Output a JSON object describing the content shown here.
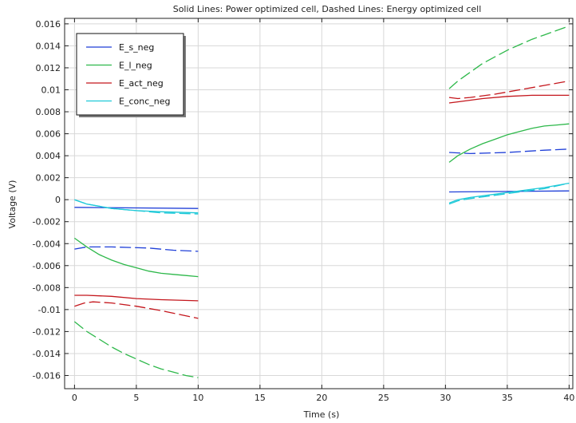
{
  "chart_data": {
    "type": "line",
    "title": "Solid Lines: Power optimized cell, Dashed Lines: Energy optimized cell",
    "xlabel": "Time (s)",
    "ylabel": "Voltage (V)",
    "xlim": [
      -0.8,
      40.3
    ],
    "ylim": [
      -0.0172,
      0.0165
    ],
    "xticks": [
      0,
      5,
      10,
      15,
      20,
      25,
      30,
      35,
      40
    ],
    "yticks": [
      -0.016,
      -0.014,
      -0.012,
      -0.01,
      -0.008,
      -0.006,
      -0.004,
      -0.002,
      0,
      0.002,
      0.004,
      0.006,
      0.008,
      0.01,
      0.012,
      0.014,
      0.016
    ],
    "ytick_labels": [
      "-0.016",
      "-0.014",
      "-0.012",
      "-0.01",
      "-0.008",
      "-0.006",
      "-0.004",
      "-0.002",
      "0",
      "0.002",
      "0.004",
      "0.006",
      "0.008",
      "0.01",
      "0.012",
      "0.014",
      "0.016"
    ],
    "grid": true,
    "legend_position": "top-left",
    "legend": [
      "E_s_neg",
      "E_l_neg",
      "E_act_neg",
      "E_conc_neg"
    ],
    "series": [
      {
        "name": "E_s_neg",
        "color": "#1f3fd8",
        "style": "solid",
        "segments": [
          [
            [
              0,
              -0.0007
            ],
            [
              10,
              -0.0008
            ]
          ],
          [
            [
              30.3,
              0.0007
            ],
            [
              40,
              0.0008
            ]
          ]
        ]
      },
      {
        "name": "E_s_neg",
        "color": "#1f3fd8",
        "style": "dashed",
        "segments": [
          [
            [
              0,
              -0.0045
            ],
            [
              1,
              -0.0043
            ],
            [
              3,
              -0.0043
            ],
            [
              6,
              -0.0044
            ],
            [
              8,
              -0.0046
            ],
            [
              10,
              -0.0047
            ]
          ],
          [
            [
              30.3,
              0.0043
            ],
            [
              32,
              0.0042
            ],
            [
              35,
              0.0043
            ],
            [
              38,
              0.0045
            ],
            [
              40,
              0.0046
            ]
          ]
        ]
      },
      {
        "name": "E_l_neg",
        "color": "#2db84a",
        "style": "solid",
        "segments": [
          [
            [
              0,
              -0.0035
            ],
            [
              1,
              -0.0043
            ],
            [
              2,
              -0.005
            ],
            [
              3,
              -0.0055
            ],
            [
              4,
              -0.0059
            ],
            [
              5,
              -0.0062
            ],
            [
              6,
              -0.0065
            ],
            [
              7,
              -0.0067
            ],
            [
              8,
              -0.0068
            ],
            [
              9,
              -0.0069
            ],
            [
              10,
              -0.007
            ]
          ],
          [
            [
              30.3,
              0.0034
            ],
            [
              31,
              0.004
            ],
            [
              32,
              0.0046
            ],
            [
              33,
              0.0051
            ],
            [
              34,
              0.0055
            ],
            [
              35,
              0.0059
            ],
            [
              36,
              0.0062
            ],
            [
              37,
              0.0065
            ],
            [
              38,
              0.0067
            ],
            [
              39,
              0.0068
            ],
            [
              40,
              0.0069
            ]
          ]
        ]
      },
      {
        "name": "E_l_neg",
        "color": "#2db84a",
        "style": "dashed",
        "segments": [
          [
            [
              0,
              -0.0111
            ],
            [
              1,
              -0.012
            ],
            [
              2,
              -0.0127
            ],
            [
              3,
              -0.0134
            ],
            [
              4,
              -0.014
            ],
            [
              5,
              -0.0145
            ],
            [
              6,
              -0.015
            ],
            [
              7,
              -0.0154
            ],
            [
              8,
              -0.0157
            ],
            [
              9,
              -0.016
            ],
            [
              10,
              -0.0162
            ]
          ],
          [
            [
              30.3,
              0.0101
            ],
            [
              31,
              0.0108
            ],
            [
              32,
              0.0116
            ],
            [
              33,
              0.0124
            ],
            [
              34,
              0.013
            ],
            [
              35,
              0.0136
            ],
            [
              36,
              0.0141
            ],
            [
              37,
              0.0146
            ],
            [
              38,
              0.015
            ],
            [
              39,
              0.0154
            ],
            [
              40,
              0.0158
            ]
          ]
        ]
      },
      {
        "name": "E_act_neg",
        "color": "#c4161c",
        "style": "solid",
        "segments": [
          [
            [
              0,
              -0.0087
            ],
            [
              1,
              -0.0087
            ],
            [
              3,
              -0.0088
            ],
            [
              5,
              -0.009
            ],
            [
              7,
              -0.0091
            ],
            [
              10,
              -0.0092
            ]
          ],
          [
            [
              30.3,
              0.0088
            ],
            [
              31,
              0.0089
            ],
            [
              33,
              0.0092
            ],
            [
              35,
              0.0094
            ],
            [
              37,
              0.0095
            ],
            [
              40,
              0.0095
            ]
          ]
        ]
      },
      {
        "name": "E_act_neg",
        "color": "#c4161c",
        "style": "dashed",
        "segments": [
          [
            [
              0,
              -0.0097
            ],
            [
              0.8,
              -0.0094
            ],
            [
              1.5,
              -0.0093
            ],
            [
              3,
              -0.0094
            ],
            [
              5,
              -0.0097
            ],
            [
              7,
              -0.0101
            ],
            [
              10,
              -0.0108
            ]
          ],
          [
            [
              30.3,
              0.0093
            ],
            [
              31,
              0.0092
            ],
            [
              32,
              0.0093
            ],
            [
              34,
              0.0096
            ],
            [
              36,
              0.01
            ],
            [
              38,
              0.0104
            ],
            [
              40,
              0.0108
            ]
          ]
        ]
      },
      {
        "name": "E_conc_neg",
        "color": "#1ec9d8",
        "style": "solid",
        "segments": [
          [
            [
              0,
              0.0
            ],
            [
              1,
              -0.0004
            ],
            [
              2,
              -0.0006
            ],
            [
              3,
              -0.0008
            ],
            [
              5,
              -0.001
            ],
            [
              7,
              -0.0011
            ],
            [
              10,
              -0.0012
            ]
          ],
          [
            [
              30.3,
              -0.0003
            ],
            [
              31,
              0.0
            ],
            [
              32,
              0.0002
            ],
            [
              34,
              0.0005
            ],
            [
              36,
              0.0008
            ],
            [
              38,
              0.0011
            ],
            [
              40,
              0.0015
            ]
          ]
        ]
      },
      {
        "name": "E_conc_neg",
        "color": "#1ec9d8",
        "style": "dashed",
        "segments": [
          [
            [
              0,
              0.0
            ],
            [
              1,
              -0.0004
            ],
            [
              2,
              -0.0006
            ],
            [
              3,
              -0.0008
            ],
            [
              5,
              -0.001
            ],
            [
              7,
              -0.0012
            ],
            [
              10,
              -0.0013
            ]
          ],
          [
            [
              30.3,
              -0.0004
            ],
            [
              31,
              -0.0001
            ],
            [
              32,
              0.0001
            ],
            [
              34,
              0.0004
            ],
            [
              36,
              0.0007
            ],
            [
              38,
              0.001
            ],
            [
              40,
              0.0015
            ]
          ]
        ]
      }
    ],
    "legend_items": [
      {
        "label": "E_s_neg",
        "color": "#1f3fd8"
      },
      {
        "label": "E_l_neg",
        "color": "#2db84a"
      },
      {
        "label": "E_act_neg",
        "color": "#c4161c"
      },
      {
        "label": "E_conc_neg",
        "color": "#1ec9d8"
      }
    ]
  }
}
